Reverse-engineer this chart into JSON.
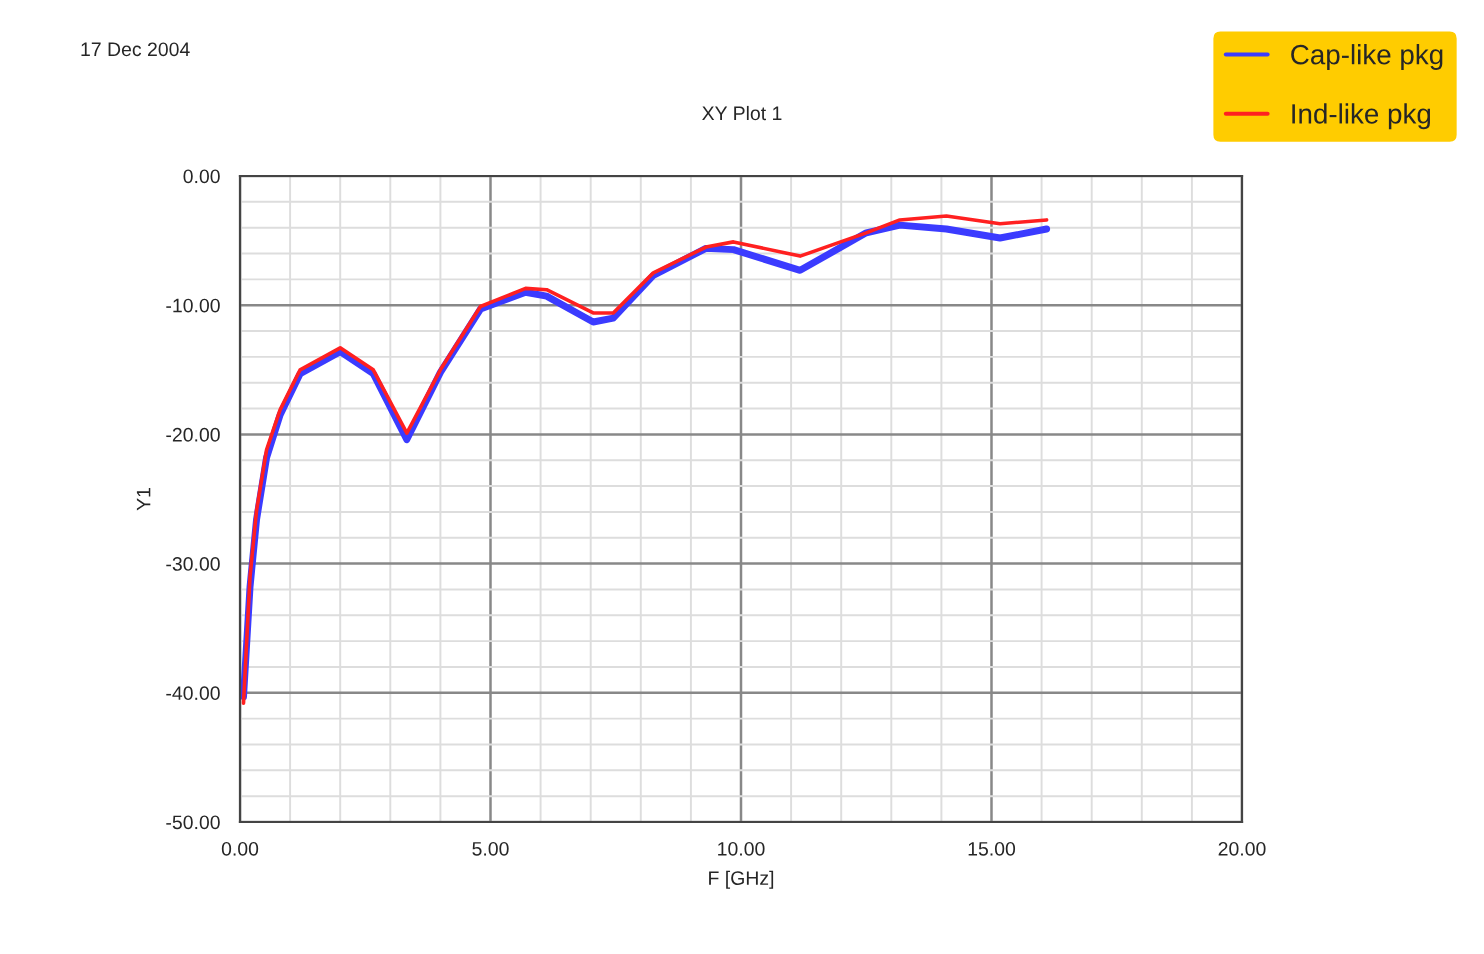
{
  "chart_data": {
    "type": "line",
    "title": "XY Plot 1",
    "xlabel": "F [GHz]",
    "ylabel": "Y1",
    "annotations": [
      "17 Dec 2004"
    ],
    "xlim": [
      0,
      20
    ],
    "ylim": [
      -50,
      0
    ],
    "xticks": [
      {
        "value": 0,
        "label": "0.00"
      },
      {
        "value": 5,
        "label": "5.00"
      },
      {
        "value": 10,
        "label": "10.00"
      },
      {
        "value": 15,
        "label": "15.00"
      },
      {
        "value": 20,
        "label": "20.00"
      }
    ],
    "yticks": [
      {
        "value": -50,
        "label": "-50.00"
      },
      {
        "value": -40,
        "label": "-40.00"
      },
      {
        "value": -30,
        "label": "-30.00"
      },
      {
        "value": -20,
        "label": "-20.00"
      },
      {
        "value": -10,
        "label": "-10.00"
      },
      {
        "value": 0,
        "label": "0.00"
      }
    ],
    "grid": true,
    "legend": "top right",
    "marker": "none",
    "line_style": "solid",
    "x": [
      0.07,
      0.2,
      0.33,
      0.53,
      0.8,
      1.2,
      2.0,
      2.66,
      3.33,
      4.0,
      4.8,
      5.7,
      6.12,
      7.05,
      7.45,
      8.25,
      9.3,
      9.85,
      11.18,
      12.5,
      13.17,
      14.1,
      15.17,
      16.1
    ],
    "series": [
      {
        "name": "Cap-like pkg",
        "color": "#3b3bff",
        "values": [
          -40.3,
          -31.8,
          -26.6,
          -21.8,
          -18.5,
          -15.3,
          -13.6,
          -15.3,
          -20.4,
          -15.2,
          -10.3,
          -9.0,
          -9.3,
          -11.3,
          -11.0,
          -7.7,
          -5.6,
          -5.7,
          -7.3,
          -4.4,
          -3.8,
          -4.1,
          -4.8,
          -4.1
        ]
      },
      {
        "name": "Ind-like pkg",
        "color": "#ff2020",
        "values": [
          -40.8,
          -31,
          -25.9,
          -21.2,
          -18.1,
          -15,
          -13.3,
          -15,
          -19.9,
          -15,
          -10.1,
          -8.7,
          -8.8,
          -10.6,
          -10.6,
          -7.5,
          -5.5,
          -5.1,
          -6.2,
          -4.4,
          -3.4,
          -3.1,
          -3.7,
          -3.4
        ]
      }
    ]
  }
}
